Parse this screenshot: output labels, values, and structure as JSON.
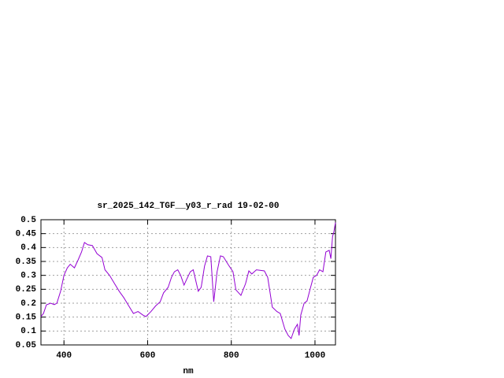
{
  "chart_data": {
    "type": "line",
    "title": "sr_2025_142_TGF__y03_r_rad 19-02-00",
    "x_label": "nm",
    "color": "#9400d3",
    "grid": true,
    "xlim": [
      345,
      1049
    ],
    "ylim": [
      0.05,
      0.5
    ],
    "xticks": [
      400,
      600,
      800,
      1000
    ],
    "yticks": [
      0.05,
      0.1,
      0.15,
      0.2,
      0.25,
      0.3,
      0.35,
      0.4,
      0.45,
      0.5
    ],
    "x": [
      345,
      351,
      358,
      368,
      377,
      383,
      392,
      400,
      408,
      415,
      425,
      434,
      442,
      449,
      457,
      468,
      479,
      491,
      498,
      509,
      521,
      532,
      543,
      555,
      566,
      577,
      589,
      596,
      608,
      619,
      630,
      638,
      649,
      657,
      664,
      672,
      679,
      687,
      694,
      702,
      709,
      721,
      728,
      736,
      743,
      751,
      758,
      766,
      774,
      781,
      792,
      804,
      811,
      823,
      834,
      842,
      849,
      860,
      879,
      887,
      898,
      909,
      917,
      928,
      936,
      943,
      951,
      958,
      962,
      966,
      974,
      981,
      989,
      996,
      1004,
      1011,
      1019,
      1026,
      1034,
      1038,
      1042,
      1045,
      1049
    ],
    "values": [
      0.152,
      0.163,
      0.194,
      0.2,
      0.195,
      0.2,
      0.243,
      0.3,
      0.327,
      0.34,
      0.327,
      0.356,
      0.384,
      0.418,
      0.41,
      0.407,
      0.378,
      0.364,
      0.32,
      0.3,
      0.27,
      0.243,
      0.22,
      0.19,
      0.163,
      0.17,
      0.157,
      0.152,
      0.17,
      0.19,
      0.205,
      0.237,
      0.257,
      0.293,
      0.313,
      0.32,
      0.3,
      0.265,
      0.288,
      0.313,
      0.32,
      0.243,
      0.257,
      0.333,
      0.37,
      0.367,
      0.205,
      0.313,
      0.37,
      0.367,
      0.34,
      0.313,
      0.248,
      0.228,
      0.27,
      0.316,
      0.305,
      0.32,
      0.316,
      0.293,
      0.186,
      0.17,
      0.163,
      0.107,
      0.084,
      0.073,
      0.107,
      0.124,
      0.084,
      0.157,
      0.2,
      0.208,
      0.254,
      0.293,
      0.3,
      0.32,
      0.313,
      0.384,
      0.39,
      0.36,
      0.44,
      0.455,
      0.49
    ]
  }
}
